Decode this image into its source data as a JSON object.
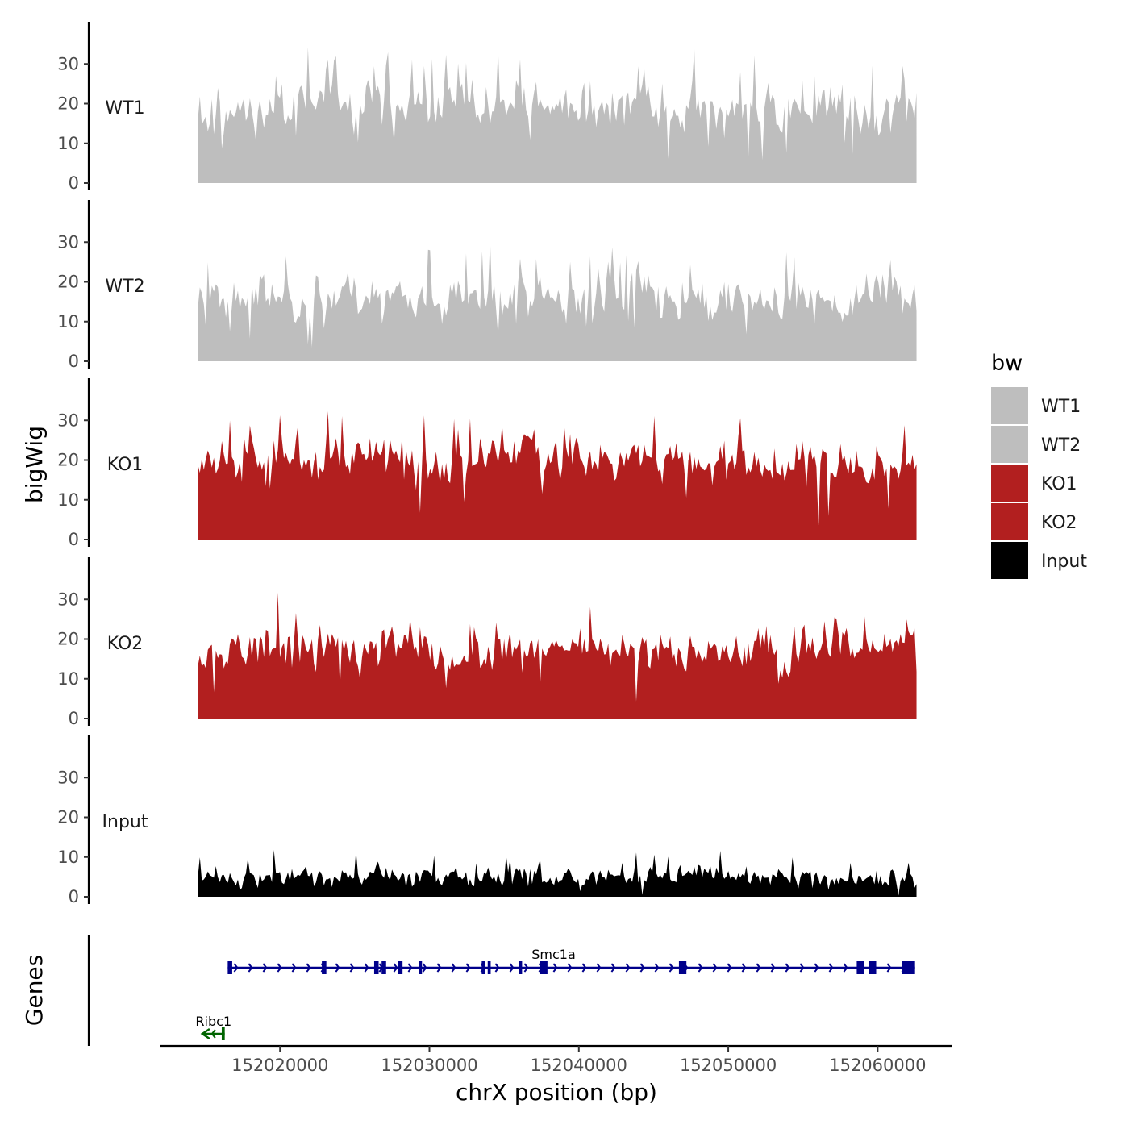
{
  "chart_data": {
    "type": "area",
    "description_axis": {
      "xlabel": "chrX position (bp)",
      "ylabel": "bigWig",
      "genes_label": "Genes",
      "x_ticks": [
        152020000,
        152030000,
        152040000,
        152050000,
        152060000
      ],
      "x_tick_labels": [
        "152020000",
        "152030000",
        "152040000",
        "152050000",
        "152060000"
      ],
      "xlim": [
        152012000,
        152065000
      ],
      "data_xrange": [
        152014500,
        152062600
      ],
      "y_ticks": [
        0,
        10,
        20,
        30
      ],
      "y_tick_labels": [
        "0",
        "10",
        "20",
        "30"
      ],
      "ylim": [
        0,
        40
      ]
    },
    "tracks": [
      {
        "name": "WT1",
        "color": "#bebebe",
        "seed": 11,
        "baseline": 19,
        "amplitude": 17,
        "noise": 7
      },
      {
        "name": "WT2",
        "color": "#bebebe",
        "seed": 23,
        "baseline": 16,
        "amplitude": 17,
        "noise": 7
      },
      {
        "name": "KO1",
        "color": "#b21f1f",
        "seed": 37,
        "baseline": 20,
        "amplitude": 17,
        "noise": 6
      },
      {
        "name": "KO2",
        "color": "#b21f1f",
        "seed": 53,
        "baseline": 17,
        "amplitude": 13,
        "noise": 6
      },
      {
        "name": "Input",
        "color": "#000000",
        "seed": 71,
        "baseline": 5,
        "amplitude": 8,
        "noise": 3
      }
    ],
    "legend": {
      "title": "bw",
      "entries": [
        {
          "label": "WT1",
          "color": "#bebebe"
        },
        {
          "label": "WT2",
          "color": "#bebebe"
        },
        {
          "label": "KO1",
          "color": "#b21f1f"
        },
        {
          "label": "KO2",
          "color": "#b21f1f"
        },
        {
          "label": "Input",
          "color": "#000000"
        }
      ]
    },
    "genes": [
      {
        "name": "Smc1a",
        "strand": "+",
        "color": "#00008b",
        "start": 152016500,
        "end": 152062500,
        "exons": [
          [
            152016500,
            152016800
          ],
          [
            152022800,
            152023100
          ],
          [
            152026300,
            152026600
          ],
          [
            152026800,
            152027100
          ],
          [
            152027900,
            152028200
          ],
          [
            152029300,
            152029500
          ],
          [
            152033500,
            152033700
          ],
          [
            152033900,
            152034100
          ],
          [
            152036000,
            152036200
          ],
          [
            152037400,
            152037900
          ],
          [
            152046700,
            152047200
          ],
          [
            152058600,
            152059100
          ],
          [
            152059400,
            152059900
          ],
          [
            152061600,
            152062500
          ]
        ]
      },
      {
        "name": "Ribc1",
        "strand": "-",
        "color": "#006400",
        "start": 152014800,
        "end": 152016300,
        "exons": [
          [
            152016100,
            152016300
          ]
        ]
      }
    ]
  }
}
